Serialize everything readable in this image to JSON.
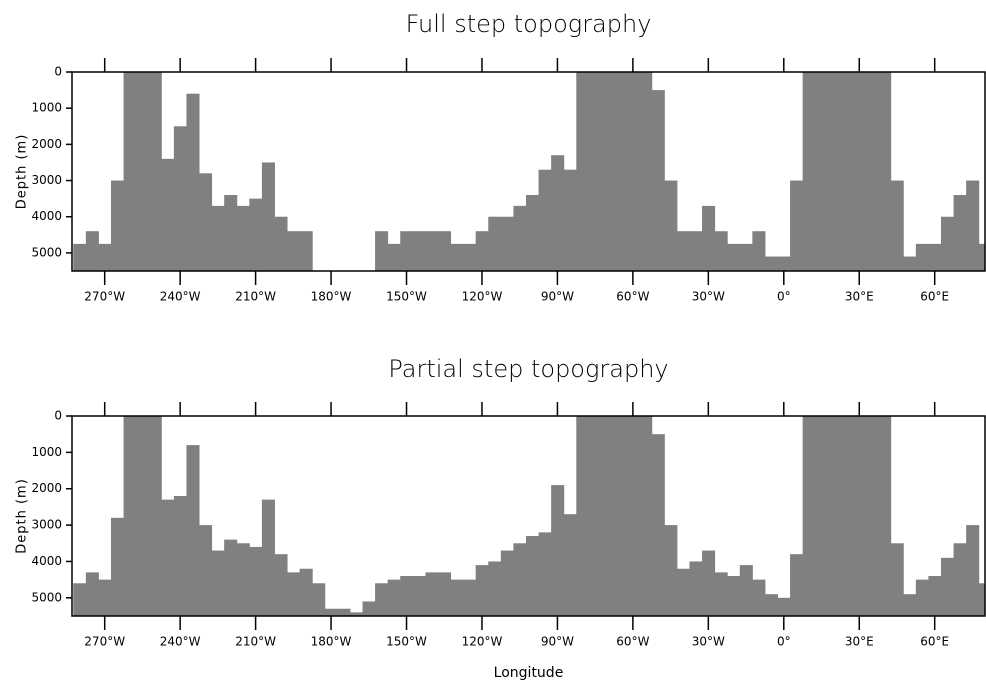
{
  "chart_data": [
    {
      "type": "bar",
      "title": "Full step topography",
      "y_label": "Depth (m)",
      "x": [
        -280,
        -275,
        -270,
        -265,
        -260,
        -255,
        -250,
        -245,
        -240,
        -235,
        -230,
        -225,
        -220,
        -215,
        -210,
        -205,
        -200,
        -195,
        -190,
        -185,
        -180,
        -175,
        -170,
        -165,
        -160,
        -155,
        -150,
        -145,
        -140,
        -135,
        -130,
        -125,
        -120,
        -115,
        -110,
        -105,
        -100,
        -95,
        -90,
        -85,
        -80,
        -75,
        -70,
        -65,
        -60,
        -55,
        -50,
        -45,
        -40,
        -35,
        -30,
        -25,
        -20,
        -15,
        -10,
        -5,
        0,
        5,
        10,
        15,
        20,
        25,
        30,
        35,
        40,
        45,
        50,
        55,
        60,
        65,
        70,
        75,
        80
      ],
      "series": [
        {
          "name": "Full step",
          "color": "#808080",
          "values": [
            4750,
            4400,
            4750,
            3000,
            0,
            0,
            0,
            2400,
            1500,
            600,
            2800,
            3700,
            3400,
            3700,
            3500,
            2500,
            4000,
            4400,
            4400,
            5500,
            5500,
            5500,
            5500,
            5500,
            4400,
            4750,
            4400,
            4400,
            4400,
            4400,
            4750,
            4750,
            4400,
            4000,
            4000,
            3700,
            3400,
            2700,
            2300,
            2700,
            0,
            0,
            0,
            0,
            0,
            0,
            500,
            3000,
            4400,
            4400,
            3700,
            4400,
            4750,
            4750,
            4400,
            5100,
            5100,
            3000,
            0,
            0,
            0,
            0,
            0,
            0,
            0,
            3000,
            5100,
            4750,
            4750,
            4000,
            3400,
            3000,
            4750
          ]
        }
      ],
      "xlim": [
        -283,
        80
      ],
      "ylim": [
        0,
        5500
      ],
      "y_inverted": true,
      "xticks": [
        {
          "value": -270,
          "label": "270°W"
        },
        {
          "value": -240,
          "label": "240°W"
        },
        {
          "value": -210,
          "label": "210°W"
        },
        {
          "value": -180,
          "label": "180°W"
        },
        {
          "value": -150,
          "label": "150°W"
        },
        {
          "value": -120,
          "label": "120°W"
        },
        {
          "value": -90,
          "label": "90°W"
        },
        {
          "value": -60,
          "label": "60°W"
        },
        {
          "value": -30,
          "label": "30°W"
        },
        {
          "value": 0,
          "label": "0°"
        },
        {
          "value": 30,
          "label": "30°E"
        },
        {
          "value": 60,
          "label": "60°E"
        }
      ],
      "yticks": [
        0,
        1000,
        2000,
        3000,
        4000,
        5000
      ]
    },
    {
      "type": "bar",
      "title": "Partial step topography",
      "y_label": "Depth (m)",
      "x_label": "Longitude",
      "x": [
        -280,
        -275,
        -270,
        -265,
        -260,
        -255,
        -250,
        -245,
        -240,
        -235,
        -230,
        -225,
        -220,
        -215,
        -210,
        -205,
        -200,
        -195,
        -190,
        -185,
        -180,
        -175,
        -170,
        -165,
        -160,
        -155,
        -150,
        -145,
        -140,
        -135,
        -130,
        -125,
        -120,
        -115,
        -110,
        -105,
        -100,
        -95,
        -90,
        -85,
        -80,
        -75,
        -70,
        -65,
        -60,
        -55,
        -50,
        -45,
        -40,
        -35,
        -30,
        -25,
        -20,
        -15,
        -10,
        -5,
        0,
        5,
        10,
        15,
        20,
        25,
        30,
        35,
        40,
        45,
        50,
        55,
        60,
        65,
        70,
        75,
        80
      ],
      "series": [
        {
          "name": "Partial step",
          "color": "#808080",
          "values": [
            4600,
            4300,
            4500,
            2800,
            0,
            0,
            0,
            2300,
            2200,
            800,
            3000,
            3700,
            3400,
            3500,
            3600,
            2300,
            3800,
            4300,
            4200,
            4600,
            5300,
            5300,
            5400,
            5100,
            4600,
            4500,
            4400,
            4400,
            4300,
            4300,
            4500,
            4500,
            4100,
            4000,
            3700,
            3500,
            3300,
            3200,
            1900,
            2700,
            0,
            0,
            0,
            0,
            0,
            0,
            500,
            3000,
            4200,
            4000,
            3700,
            4300,
            4400,
            4100,
            4500,
            4900,
            5000,
            3800,
            0,
            0,
            0,
            0,
            0,
            0,
            0,
            3500,
            4900,
            4500,
            4400,
            3900,
            3500,
            3000,
            4600
          ]
        }
      ],
      "xlim": [
        -283,
        80
      ],
      "ylim": [
        0,
        5500
      ],
      "y_inverted": true,
      "xticks": [
        {
          "value": -270,
          "label": "270°W"
        },
        {
          "value": -240,
          "label": "240°W"
        },
        {
          "value": -210,
          "label": "210°W"
        },
        {
          "value": -180,
          "label": "180°W"
        },
        {
          "value": -150,
          "label": "150°W"
        },
        {
          "value": -120,
          "label": "120°W"
        },
        {
          "value": -90,
          "label": "90°W"
        },
        {
          "value": -60,
          "label": "60°W"
        },
        {
          "value": -30,
          "label": "30°W"
        },
        {
          "value": 0,
          "label": "0°"
        },
        {
          "value": 30,
          "label": "30°E"
        },
        {
          "value": 60,
          "label": "60°E"
        }
      ],
      "yticks": [
        0,
        1000,
        2000,
        3000,
        4000,
        5000
      ]
    }
  ]
}
